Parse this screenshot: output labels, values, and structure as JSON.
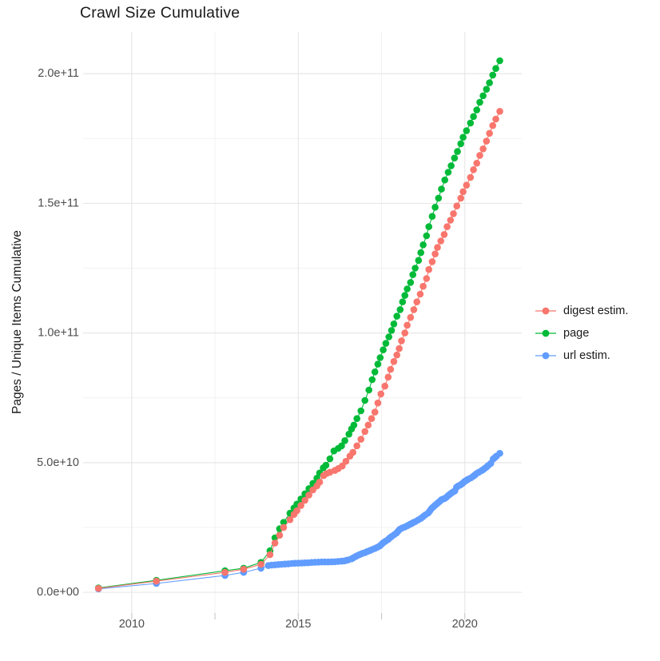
{
  "chart_data": {
    "type": "scatter",
    "title": "Crawl Size Cumulative",
    "xlabel": "",
    "ylabel": "Pages / Unique Items Cumulative",
    "grid": true,
    "legend_position": "right",
    "value_unit": "items (values stored in billions, 1e9)",
    "xlim": [
      2008.54,
      2021.71
    ],
    "ylim_billions": [
      -8,
      216.1
    ],
    "x_ticks": [
      {
        "value": 2010,
        "label": "2010"
      },
      {
        "value": 2015,
        "label": "2015"
      },
      {
        "value": 2020,
        "label": "2020"
      }
    ],
    "x_minor": [
      2012.5,
      2017.5
    ],
    "y_ticks": [
      {
        "value": 0,
        "label": "0.0e+00"
      },
      {
        "value": 50,
        "label": "5.0e+10"
      },
      {
        "value": 100,
        "label": "1.0e+11"
      },
      {
        "value": 150,
        "label": "1.5e+11"
      },
      {
        "value": 200,
        "label": "2.0e+11"
      }
    ],
    "y_minor": [
      25,
      75,
      125,
      175
    ],
    "colors": {
      "digest": "#F8766D",
      "page": "#00BA38",
      "url": "#619CFF",
      "grid_major": "#E7E7E7",
      "grid_minor": "#F1F1F1",
      "tick": "#C6C6C6",
      "tick_text": "#4D4D4D",
      "text": "#1A1A1A"
    },
    "draw_order": [
      1,
      2,
      0
    ],
    "series": [
      {
        "name": "digest estim.",
        "color_key": "digest",
        "points": [
          [
            2009.0,
            1.5
          ],
          [
            2010.74,
            4.3
          ],
          [
            2012.8,
            7.7
          ],
          [
            2013.36,
            8.9
          ],
          [
            2013.88,
            10.8
          ],
          [
            2014.15,
            14.5
          ],
          [
            2014.3,
            19
          ],
          [
            2014.44,
            22
          ],
          [
            2014.56,
            25
          ],
          [
            2014.75,
            28
          ],
          [
            2014.87,
            30
          ],
          [
            2014.96,
            31.5
          ],
          [
            2015.08,
            33.5
          ],
          [
            2015.2,
            35.5
          ],
          [
            2015.32,
            37.5
          ],
          [
            2015.44,
            39.5
          ],
          [
            2015.56,
            41
          ],
          [
            2015.64,
            42.5
          ],
          [
            2015.76,
            45
          ],
          [
            2015.85,
            45.8
          ],
          [
            2015.95,
            46.3
          ],
          [
            2016.1,
            47
          ],
          [
            2016.2,
            47.7
          ],
          [
            2016.32,
            48.7
          ],
          [
            2016.43,
            50.5
          ],
          [
            2016.55,
            52.5
          ],
          [
            2016.64,
            54
          ],
          [
            2016.76,
            56.5
          ],
          [
            2016.88,
            59
          ],
          [
            2017.0,
            62
          ],
          [
            2017.1,
            64.5
          ],
          [
            2017.2,
            67
          ],
          [
            2017.3,
            69.5
          ],
          [
            2017.39,
            73
          ],
          [
            2017.48,
            76.5
          ],
          [
            2017.6,
            79.5
          ],
          [
            2017.7,
            83
          ],
          [
            2017.77,
            86
          ],
          [
            2017.87,
            89
          ],
          [
            2017.96,
            91.5
          ],
          [
            2018.03,
            94
          ],
          [
            2018.1,
            97
          ],
          [
            2018.2,
            100
          ],
          [
            2018.27,
            103
          ],
          [
            2018.37,
            106
          ],
          [
            2018.47,
            109
          ],
          [
            2018.56,
            112
          ],
          [
            2018.66,
            115
          ],
          [
            2018.75,
            118
          ],
          [
            2018.85,
            121
          ],
          [
            2018.92,
            124.5
          ],
          [
            2019.02,
            127.5
          ],
          [
            2019.11,
            130.5
          ],
          [
            2019.18,
            133
          ],
          [
            2019.28,
            135.5
          ],
          [
            2019.38,
            138
          ],
          [
            2019.47,
            141
          ],
          [
            2019.57,
            143.5
          ],
          [
            2019.66,
            146
          ],
          [
            2019.76,
            149
          ],
          [
            2019.88,
            152
          ],
          [
            2019.95,
            154.5
          ],
          [
            2020.05,
            157
          ],
          [
            2020.17,
            160
          ],
          [
            2020.26,
            163
          ],
          [
            2020.36,
            165.5
          ],
          [
            2020.45,
            168.5
          ],
          [
            2020.55,
            171
          ],
          [
            2020.65,
            174
          ],
          [
            2020.74,
            177
          ],
          [
            2020.84,
            180
          ],
          [
            2020.93,
            182.5
          ],
          [
            2021.05,
            185.5
          ]
        ]
      },
      {
        "name": "page",
        "color_key": "page",
        "points": [
          [
            2009.0,
            1.7
          ],
          [
            2010.74,
            4.6
          ],
          [
            2012.8,
            8.3
          ],
          [
            2013.36,
            9.3
          ],
          [
            2013.88,
            11.5
          ],
          [
            2014.15,
            16
          ],
          [
            2014.3,
            21
          ],
          [
            2014.44,
            24.5
          ],
          [
            2014.56,
            27
          ],
          [
            2014.75,
            30.5
          ],
          [
            2014.87,
            32.5
          ],
          [
            2014.96,
            34
          ],
          [
            2015.08,
            36
          ],
          [
            2015.2,
            38
          ],
          [
            2015.32,
            40
          ],
          [
            2015.44,
            42
          ],
          [
            2015.56,
            44
          ],
          [
            2015.64,
            46
          ],
          [
            2015.75,
            48
          ],
          [
            2015.83,
            49
          ],
          [
            2015.95,
            51.5
          ],
          [
            2016.07,
            54.5
          ],
          [
            2016.2,
            55.5
          ],
          [
            2016.3,
            56.5
          ],
          [
            2016.4,
            58.5
          ],
          [
            2016.52,
            61
          ],
          [
            2016.6,
            63
          ],
          [
            2016.67,
            64.5
          ],
          [
            2016.76,
            67
          ],
          [
            2016.88,
            70
          ],
          [
            2017.0,
            74
          ],
          [
            2017.12,
            78
          ],
          [
            2017.22,
            82
          ],
          [
            2017.3,
            85
          ],
          [
            2017.39,
            88
          ],
          [
            2017.46,
            90.5
          ],
          [
            2017.55,
            93.5
          ],
          [
            2017.63,
            96
          ],
          [
            2017.72,
            98.5
          ],
          [
            2017.8,
            101
          ],
          [
            2017.87,
            103.5
          ],
          [
            2017.96,
            106.5
          ],
          [
            2018.06,
            109
          ],
          [
            2018.13,
            112
          ],
          [
            2018.2,
            114.5
          ],
          [
            2018.27,
            117
          ],
          [
            2018.37,
            119.5
          ],
          [
            2018.44,
            122.5
          ],
          [
            2018.51,
            125
          ],
          [
            2018.61,
            128
          ],
          [
            2018.68,
            131
          ],
          [
            2018.75,
            134
          ],
          [
            2018.85,
            137.5
          ],
          [
            2018.92,
            141
          ],
          [
            2019.02,
            145
          ],
          [
            2019.11,
            148.5
          ],
          [
            2019.21,
            152
          ],
          [
            2019.3,
            155.5
          ],
          [
            2019.4,
            159
          ],
          [
            2019.5,
            162
          ],
          [
            2019.59,
            164.5
          ],
          [
            2019.69,
            167.5
          ],
          [
            2019.78,
            170
          ],
          [
            2019.88,
            173
          ],
          [
            2019.95,
            175.5
          ],
          [
            2020.05,
            178
          ],
          [
            2020.17,
            181
          ],
          [
            2020.26,
            183.5
          ],
          [
            2020.36,
            186
          ],
          [
            2020.45,
            189
          ],
          [
            2020.55,
            191.5
          ],
          [
            2020.65,
            194
          ],
          [
            2020.74,
            196.5
          ],
          [
            2020.84,
            199.5
          ],
          [
            2020.93,
            202
          ],
          [
            2021.05,
            205
          ]
        ]
      },
      {
        "name": "url estim.",
        "color_key": "url",
        "points": [
          [
            2009.0,
            1.3
          ],
          [
            2010.74,
            3.4
          ],
          [
            2012.8,
            6.5
          ],
          [
            2013.36,
            7.7
          ],
          [
            2013.88,
            9.3
          ],
          [
            2014.1,
            10.3
          ],
          [
            2014.2,
            10.5
          ],
          [
            2014.3,
            10.6
          ],
          [
            2014.4,
            10.7
          ],
          [
            2014.5,
            10.8
          ],
          [
            2014.6,
            10.9
          ],
          [
            2014.7,
            11.0
          ],
          [
            2014.8,
            11.1
          ],
          [
            2014.9,
            11.2
          ],
          [
            2015.0,
            11.25
          ],
          [
            2015.1,
            11.3
          ],
          [
            2015.2,
            11.35
          ],
          [
            2015.3,
            11.4
          ],
          [
            2015.4,
            11.5
          ],
          [
            2015.5,
            11.6
          ],
          [
            2015.6,
            11.65
          ],
          [
            2015.7,
            11.7
          ],
          [
            2015.8,
            11.7
          ],
          [
            2015.9,
            11.7
          ],
          [
            2016.0,
            11.75
          ],
          [
            2016.1,
            11.8
          ],
          [
            2016.2,
            11.9
          ],
          [
            2016.3,
            12.0
          ],
          [
            2016.38,
            12.1
          ],
          [
            2016.45,
            12.3
          ],
          [
            2016.5,
            12.5
          ],
          [
            2016.6,
            12.9
          ],
          [
            2016.65,
            13.3
          ],
          [
            2016.72,
            13.8
          ],
          [
            2016.78,
            14.2
          ],
          [
            2016.85,
            14.6
          ],
          [
            2016.92,
            15.0
          ],
          [
            2017.0,
            15.3
          ],
          [
            2017.07,
            15.7
          ],
          [
            2017.15,
            16.1
          ],
          [
            2017.22,
            16.5
          ],
          [
            2017.3,
            16.9
          ],
          [
            2017.38,
            17.4
          ],
          [
            2017.45,
            17.9
          ],
          [
            2017.5,
            18.5
          ],
          [
            2017.55,
            19.1
          ],
          [
            2017.62,
            19.7
          ],
          [
            2017.7,
            20.4
          ],
          [
            2017.75,
            21.0
          ],
          [
            2017.8,
            21.5
          ],
          [
            2017.88,
            22.2
          ],
          [
            2017.95,
            22.9
          ],
          [
            2018.0,
            23.6
          ],
          [
            2018.05,
            24.3
          ],
          [
            2018.12,
            24.8
          ],
          [
            2018.2,
            25.2
          ],
          [
            2018.28,
            25.7
          ],
          [
            2018.35,
            26.2
          ],
          [
            2018.4,
            26.5
          ],
          [
            2018.45,
            26.9
          ],
          [
            2018.52,
            27.3
          ],
          [
            2018.6,
            27.9
          ],
          [
            2018.68,
            28.5
          ],
          [
            2018.75,
            29.2
          ],
          [
            2018.82,
            29.9
          ],
          [
            2018.9,
            30.6
          ],
          [
            2018.95,
            31.4
          ],
          [
            2019.0,
            32.3
          ],
          [
            2019.05,
            32.9
          ],
          [
            2019.1,
            33.5
          ],
          [
            2019.15,
            34.0
          ],
          [
            2019.2,
            34.6
          ],
          [
            2019.25,
            35.1
          ],
          [
            2019.3,
            35.7
          ],
          [
            2019.35,
            36.0
          ],
          [
            2019.4,
            36.2
          ],
          [
            2019.45,
            36.7
          ],
          [
            2019.5,
            37.3
          ],
          [
            2019.55,
            37.8
          ],
          [
            2019.6,
            38.3
          ],
          [
            2019.65,
            38.7
          ],
          [
            2019.7,
            39.1
          ],
          [
            2019.75,
            40.5
          ],
          [
            2019.8,
            41.0
          ],
          [
            2019.85,
            41.3
          ],
          [
            2019.9,
            41.7
          ],
          [
            2019.95,
            42.2
          ],
          [
            2020.0,
            42.8
          ],
          [
            2020.05,
            43.2
          ],
          [
            2020.1,
            43.6
          ],
          [
            2020.18,
            44.1
          ],
          [
            2020.25,
            44.7
          ],
          [
            2020.3,
            45.2
          ],
          [
            2020.35,
            45.8
          ],
          [
            2020.42,
            46.3
          ],
          [
            2020.5,
            46.9
          ],
          [
            2020.55,
            47.3
          ],
          [
            2020.6,
            47.8
          ],
          [
            2020.65,
            48.3
          ],
          [
            2020.7,
            48.9
          ],
          [
            2020.78,
            49.7
          ],
          [
            2020.85,
            51.4
          ],
          [
            2020.9,
            51.9
          ],
          [
            2020.95,
            52.5
          ],
          [
            2021.05,
            53.6
          ]
        ]
      }
    ]
  }
}
